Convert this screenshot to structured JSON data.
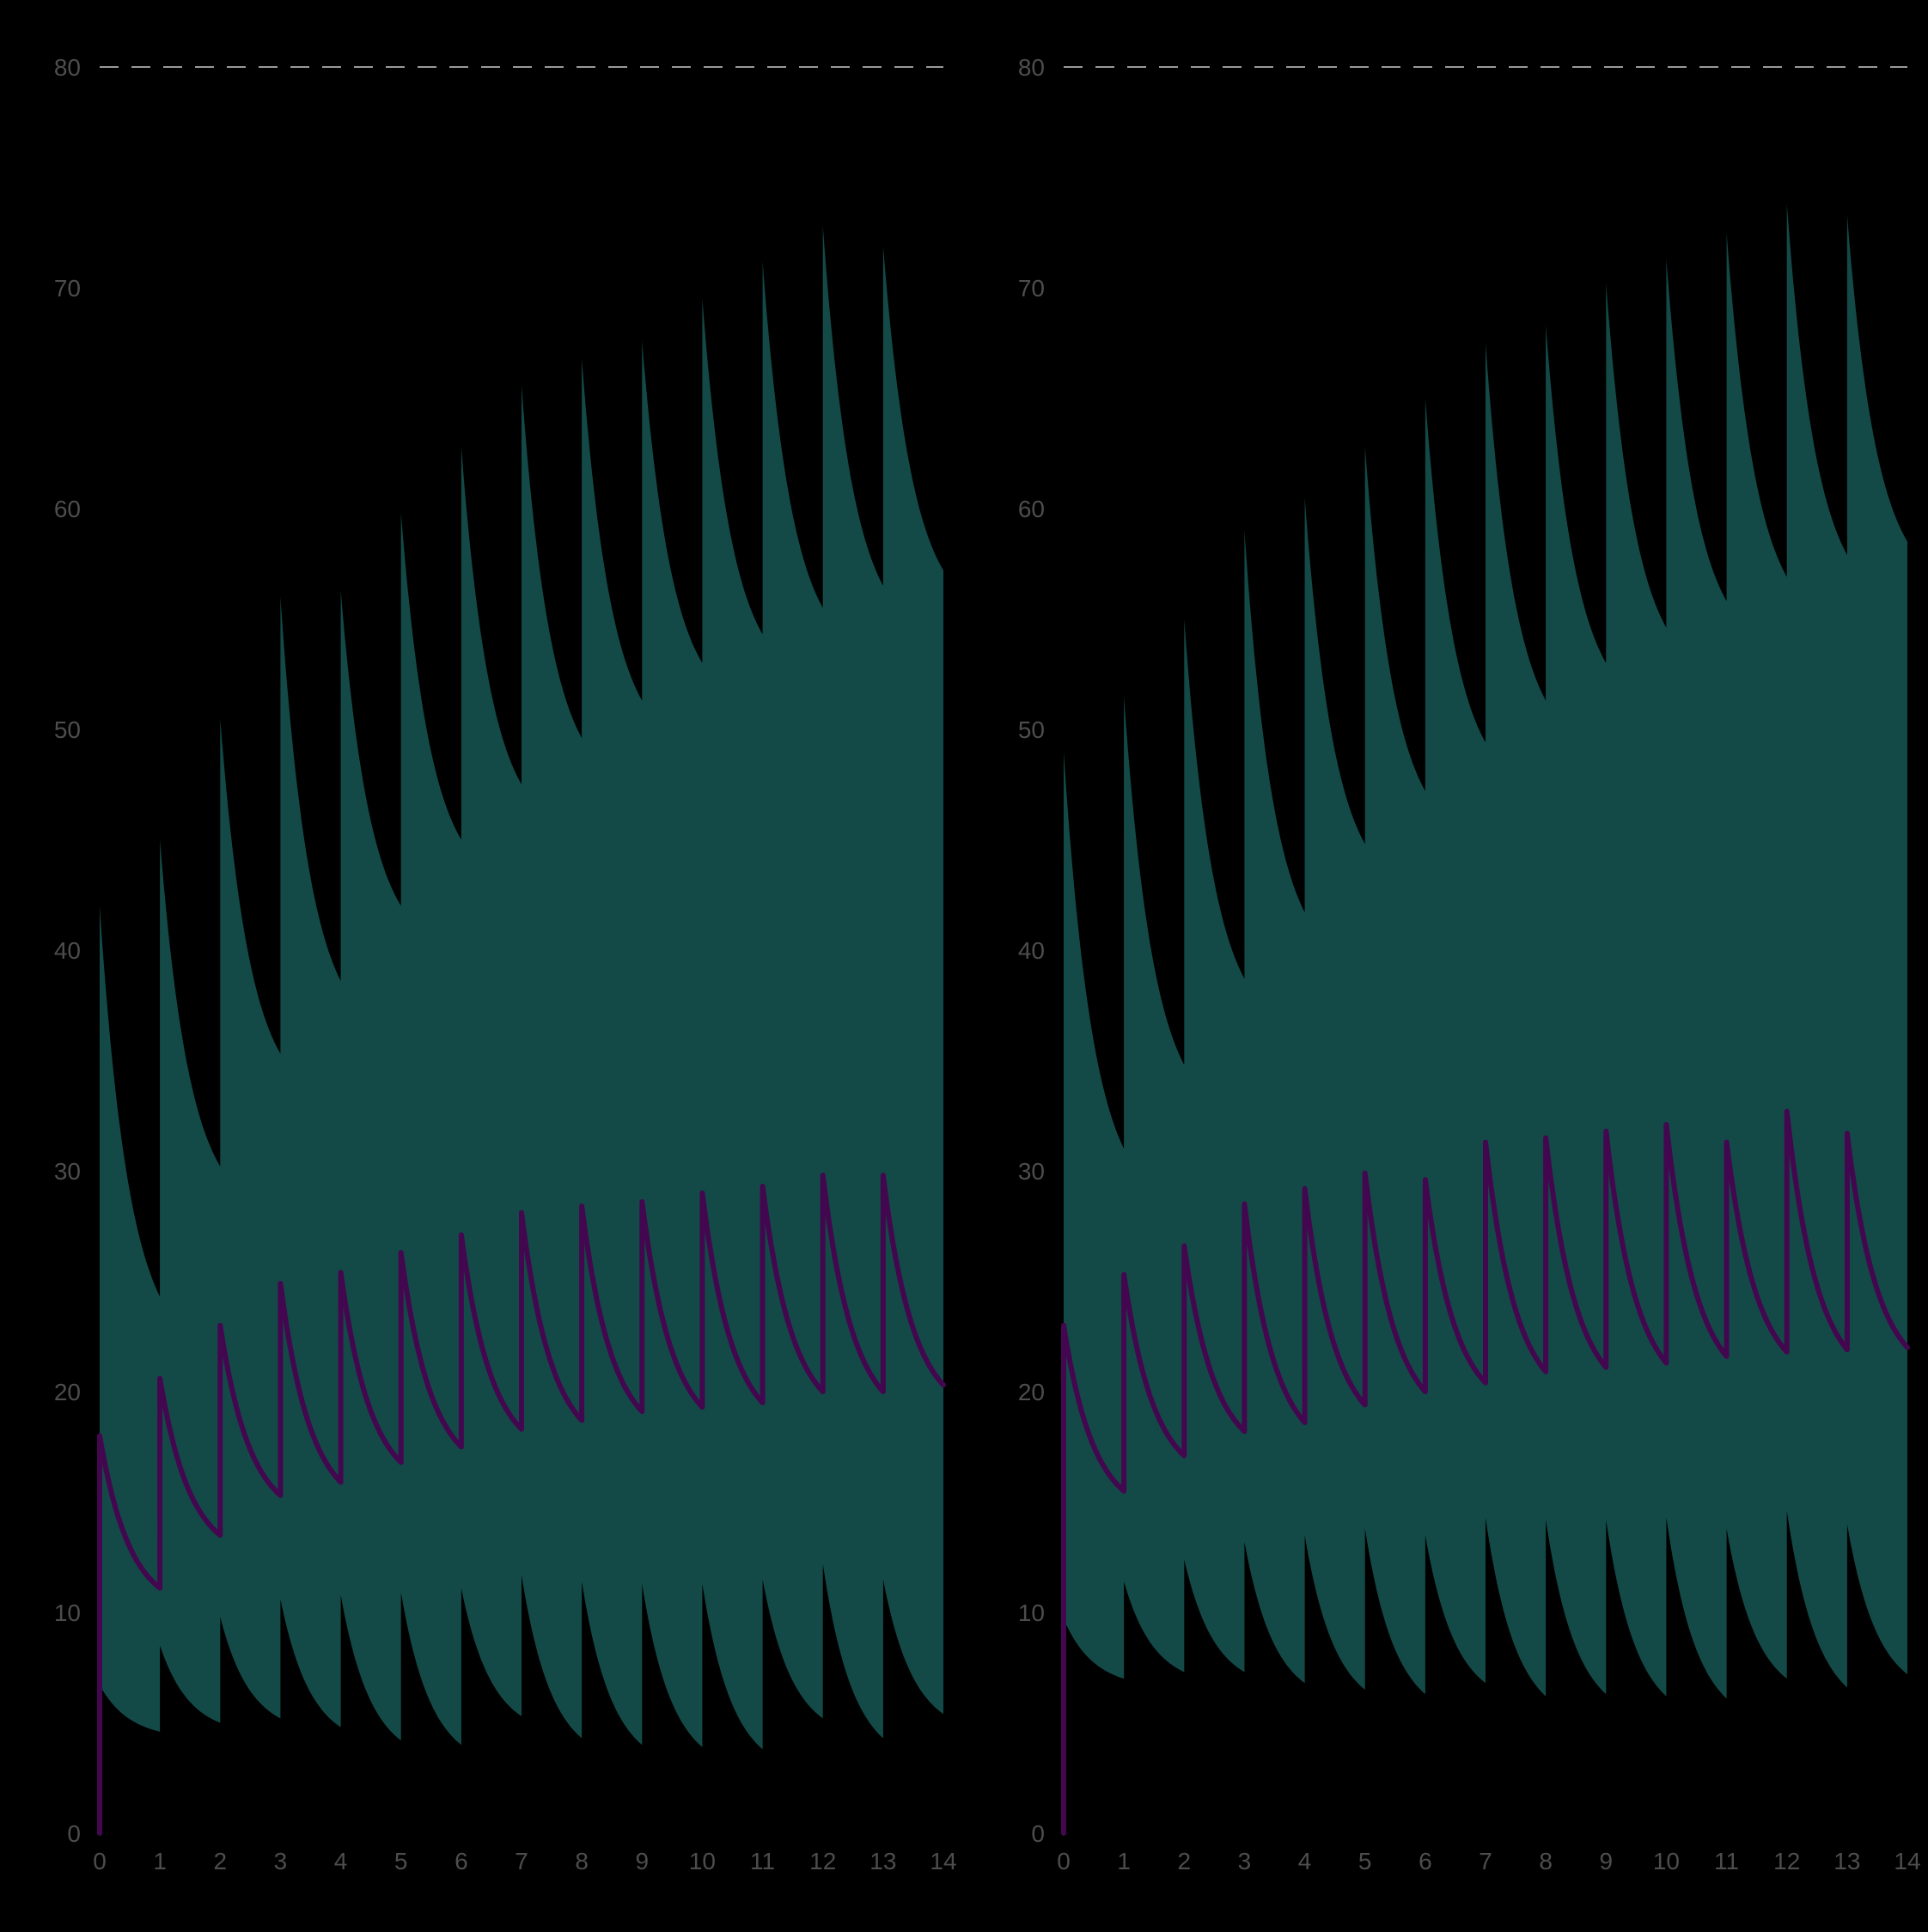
{
  "colors": {
    "background": "#000000",
    "ribbon": "#134a47",
    "median_line": "#43074f",
    "reference_line": "#9a9a9a",
    "tick_label": "#4d4d4d"
  },
  "chart_data": [
    {
      "type": "area",
      "xlabel": "",
      "ylabel": "",
      "xlim": [
        0,
        14
      ],
      "ylim": [
        0,
        80
      ],
      "x_ticks": [
        "0",
        "1",
        "2",
        "3",
        "4",
        "5",
        "6",
        "7",
        "8",
        "9",
        "10",
        "11",
        "12",
        "13",
        "14"
      ],
      "y_ticks": [
        "0",
        "10",
        "20",
        "30",
        "40",
        "50",
        "60",
        "70",
        "80"
      ],
      "reference_line": {
        "y": 80,
        "style": "dashed"
      },
      "grid": false,
      "legend": "none",
      "dose_interval": 1,
      "series": [
        {
          "role": "ribbon-upper",
          "peaks": [
            42.0,
            45.0,
            50.5,
            56.0,
            56.3,
            59.8,
            62.8,
            65.6,
            66.8,
            67.6,
            69.5,
            71.2,
            72.8,
            71.9
          ],
          "troughs": [
            24.3,
            30.2,
            35.3,
            38.6,
            42.0,
            45.0,
            47.5,
            49.6,
            51.3,
            53.0,
            54.3,
            55.5,
            56.5,
            57.2
          ]
        },
        {
          "role": "ribbon-lower",
          "peaks": [
            6.7,
            8.5,
            9.8,
            10.6,
            10.8,
            10.9,
            11.1,
            11.7,
            11.4,
            11.3,
            11.3,
            11.5,
            12.2,
            11.5
          ],
          "troughs": [
            4.6,
            5.0,
            5.2,
            4.8,
            4.2,
            4.0,
            5.3,
            4.3,
            4.0,
            3.9,
            3.8,
            5.2,
            4.3,
            5.4
          ]
        },
        {
          "role": "median",
          "peaks": [
            18.0,
            20.6,
            23.0,
            24.9,
            25.4,
            26.3,
            27.1,
            28.1,
            28.4,
            28.6,
            29.0,
            29.3,
            29.8,
            29.8
          ],
          "troughs": [
            11.1,
            13.5,
            15.3,
            15.9,
            16.8,
            17.5,
            18.3,
            18.7,
            19.1,
            19.3,
            19.5,
            20.0,
            20.0,
            20.3
          ]
        }
      ]
    },
    {
      "type": "area",
      "xlabel": "",
      "ylabel": "",
      "xlim": [
        0,
        14
      ],
      "ylim": [
        0,
        80
      ],
      "x_ticks": [
        "0",
        "1",
        "2",
        "3",
        "4",
        "5",
        "6",
        "7",
        "8",
        "9",
        "10",
        "11",
        "12",
        "13",
        "14"
      ],
      "y_ticks": [
        "0",
        "10",
        "20",
        "30",
        "40",
        "50",
        "60",
        "70",
        "80"
      ],
      "reference_line": {
        "y": 80,
        "style": "dashed"
      },
      "grid": false,
      "legend": "none",
      "dose_interval": 1,
      "series": [
        {
          "role": "ribbon-upper",
          "peaks": [
            49.0,
            51.5,
            55.0,
            59.0,
            60.5,
            62.8,
            65.0,
            67.5,
            68.3,
            70.2,
            71.3,
            72.5,
            73.8,
            73.3
          ],
          "troughs": [
            31.0,
            34.8,
            38.7,
            41.7,
            44.8,
            47.2,
            49.4,
            51.3,
            53.0,
            54.6,
            55.8,
            56.9,
            57.9,
            58.5
          ]
        },
        {
          "role": "ribbon-lower",
          "peaks": [
            9.7,
            11.4,
            12.4,
            13.2,
            13.5,
            13.8,
            13.5,
            14.3,
            14.2,
            14.2,
            14.3,
            13.8,
            14.6,
            14.0
          ],
          "troughs": [
            7.0,
            7.3,
            7.3,
            6.8,
            6.5,
            6.3,
            6.8,
            6.2,
            6.3,
            6.2,
            6.1,
            7.0,
            6.6,
            7.2
          ]
        },
        {
          "role": "median",
          "peaks": [
            23.0,
            25.3,
            26.6,
            28.5,
            29.2,
            29.9,
            29.6,
            31.3,
            31.5,
            31.8,
            32.1,
            31.3,
            32.7,
            31.7
          ],
          "troughs": [
            15.5,
            17.1,
            18.2,
            18.6,
            19.4,
            20.0,
            20.4,
            20.9,
            21.1,
            21.3,
            21.6,
            21.8,
            21.9,
            22.0
          ]
        }
      ]
    }
  ]
}
